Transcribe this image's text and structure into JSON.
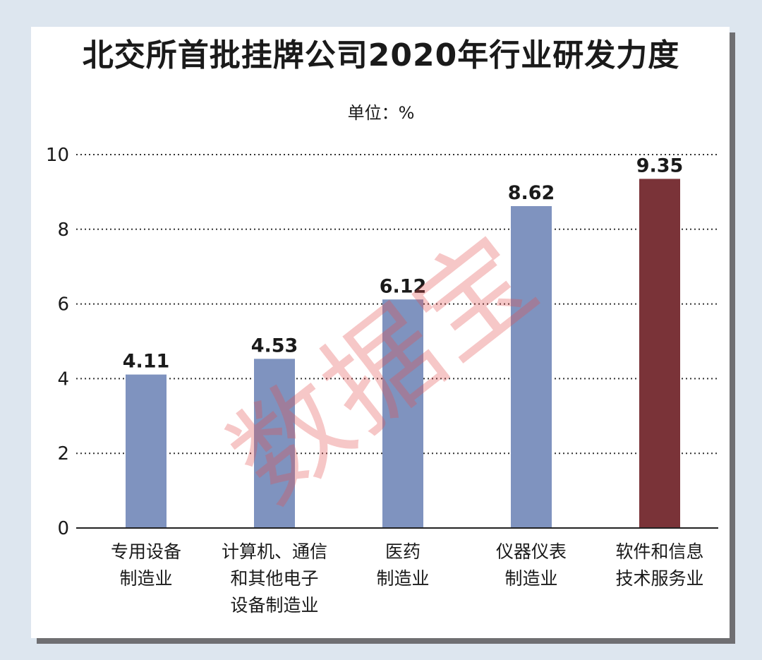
{
  "chart_data": {
    "type": "bar",
    "title": "北交所首批挂牌公司2020年行业研发力度",
    "subtitle": "单位：%",
    "categories": [
      "专用设备\n制造业",
      "计算机、通信\n和其他电子\n设备制造业",
      "医药\n制造业",
      "仪器仪表\n制造业",
      "软件和信息\n技术服务业"
    ],
    "values": [
      4.11,
      4.53,
      6.12,
      8.62,
      9.35
    ],
    "value_labels": [
      "4.11",
      "4.53",
      "6.12",
      "8.62",
      "9.35"
    ],
    "bar_colors": [
      "#7f93bf",
      "#7f93bf",
      "#7f93bf",
      "#7f93bf",
      "#7a3338"
    ],
    "ylim": [
      0,
      10
    ],
    "yticks": [
      "0",
      "2",
      "4",
      "6",
      "8",
      "10"
    ],
    "grid": true,
    "grid_style": "dotted"
  },
  "watermark": "数据宝"
}
